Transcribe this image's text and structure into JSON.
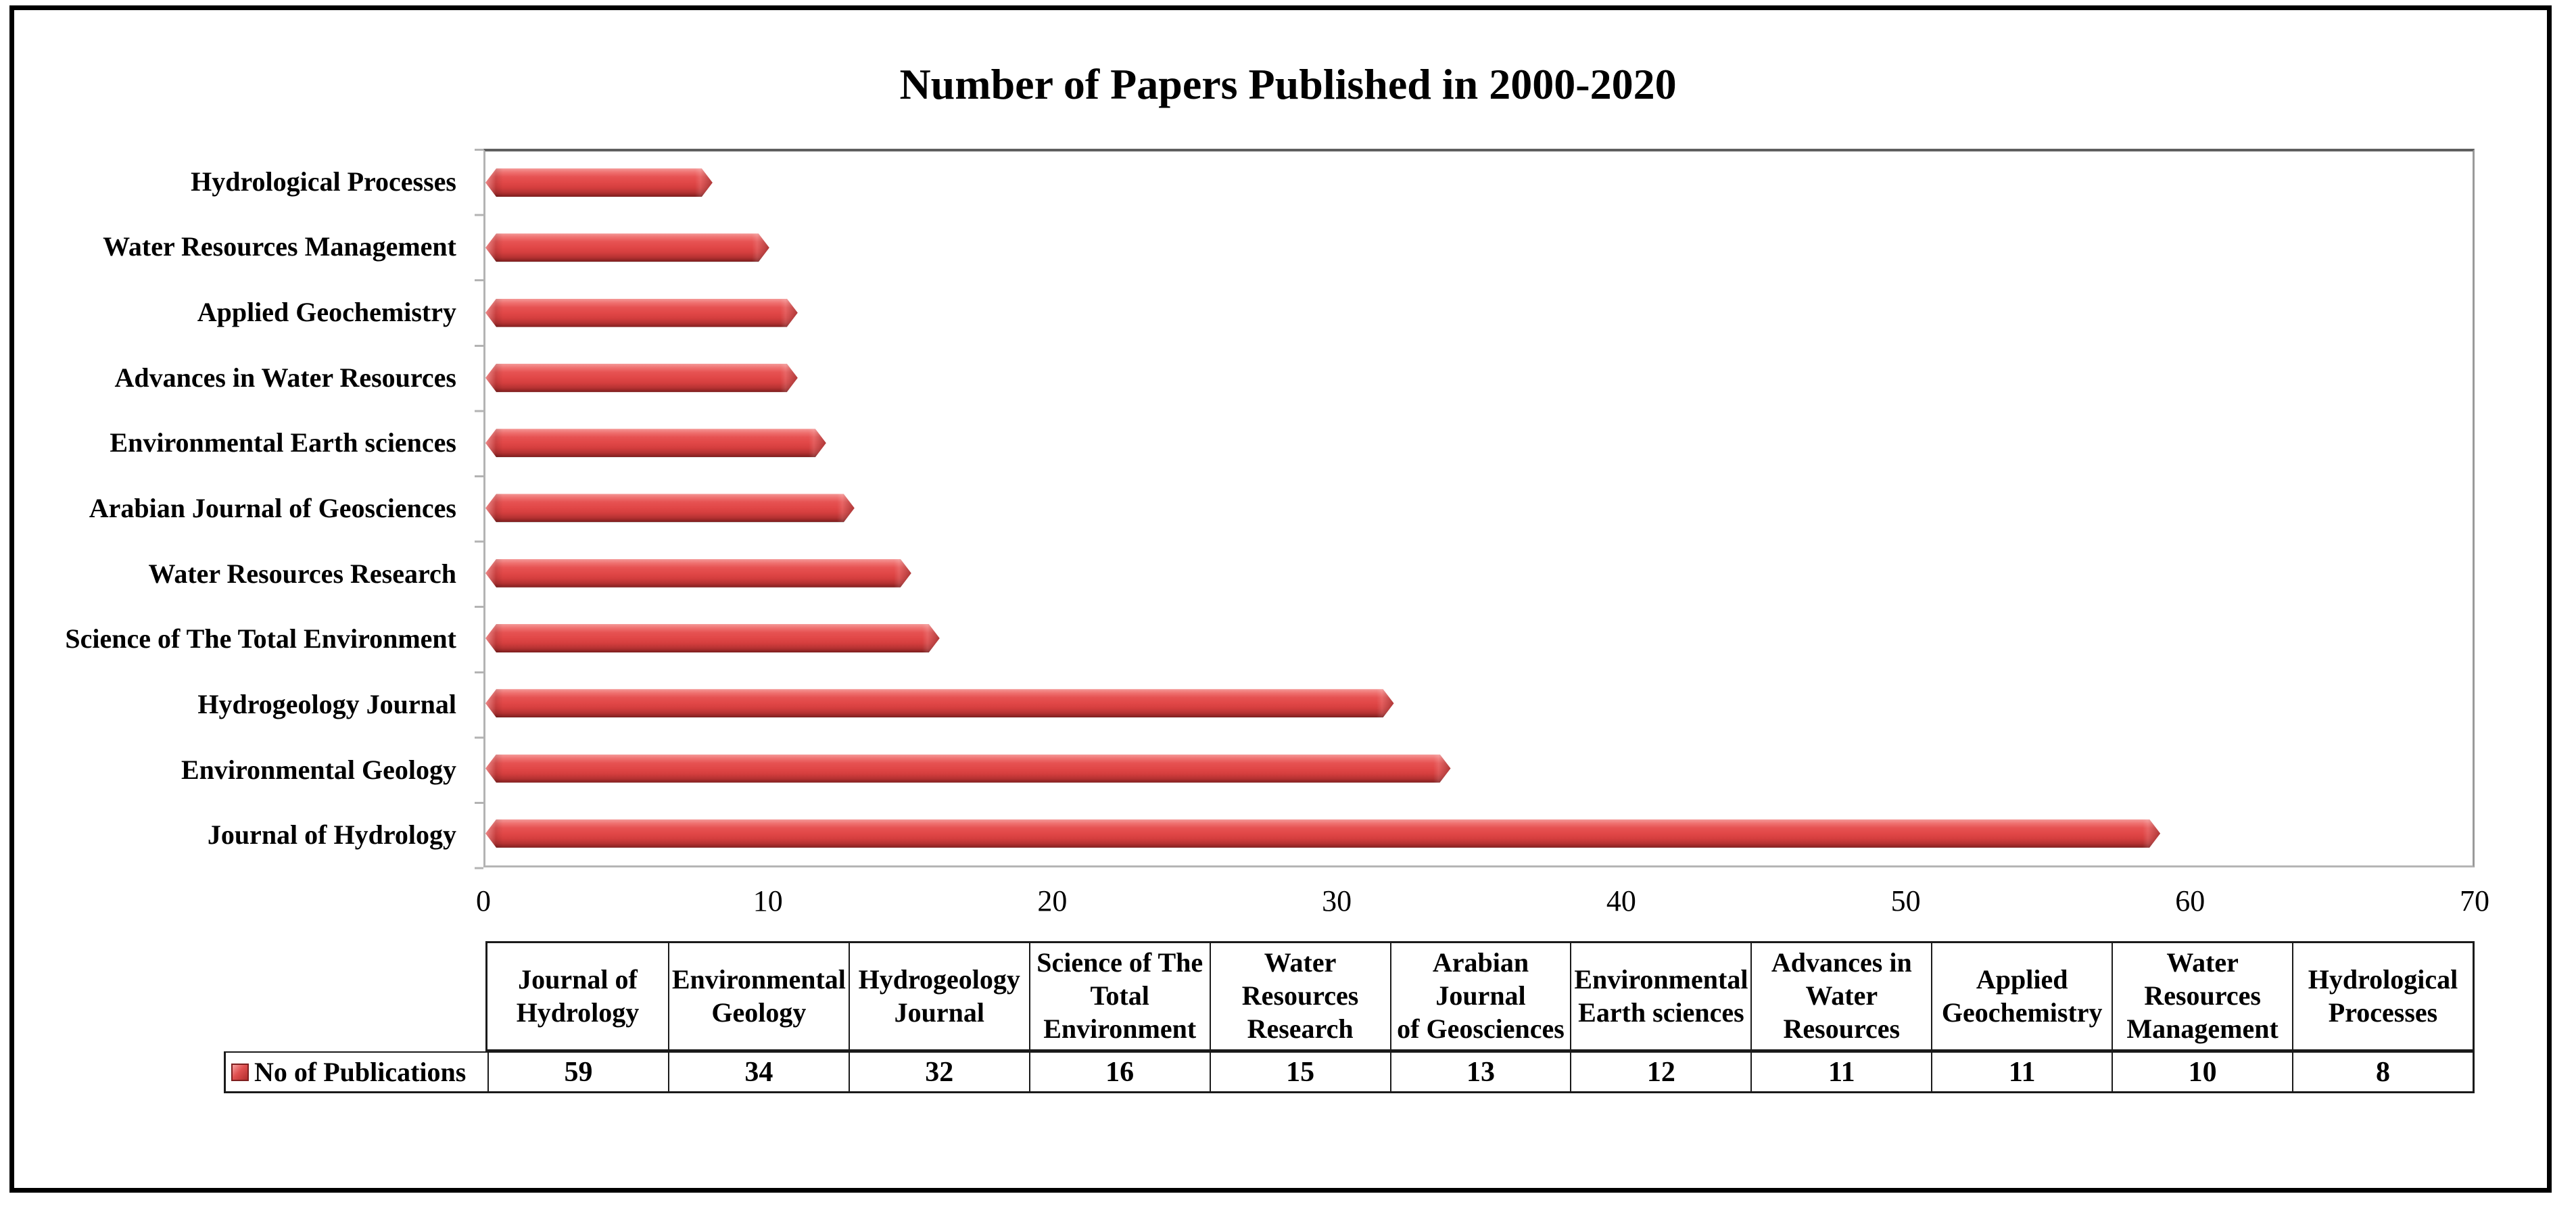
{
  "figure": {
    "title": "Number of Papers Published in 2000-2020"
  },
  "chart_data": {
    "type": "bar",
    "orientation": "horizontal",
    "title": "Number of Papers Published in 2000-2020",
    "categories": [
      "Journal of Hydrology",
      "Environmental Geology",
      "Hydrogeology Journal",
      "Science of The Total Environment",
      "Water Resources Research",
      "Arabian Journal of Geosciences",
      "Environmental Earth sciences",
      "Advances in Water Resources",
      "Applied Geochemistry",
      "Water Resources Management",
      "Hydrological Processes"
    ],
    "series": [
      {
        "name": "No of Publications",
        "values": [
          59,
          34,
          32,
          16,
          15,
          13,
          12,
          11,
          11,
          10,
          8
        ]
      }
    ],
    "xlabel": "",
    "ylabel": "",
    "xlim": [
      0,
      70
    ],
    "x_tick_step": 10,
    "grid": false,
    "bar_color": "#e14747",
    "bar_style": "3d-bevel",
    "legend_position": "table-row-left",
    "category_axis_order_top_to_bottom": [
      "Hydrological Processes",
      "Water Resources Management",
      "Applied Geochemistry",
      "Advances in Water Resources",
      "Environmental Earth sciences",
      "Arabian Journal of Geosciences",
      "Water Resources Research",
      "Science of The Total Environment",
      "Hydrogeology Journal",
      "Environmental Geology",
      "Journal of Hydrology"
    ]
  },
  "plot": {
    "x_max": 70,
    "x_ticks": [
      "0",
      "10",
      "20",
      "30",
      "40",
      "50",
      "60",
      "70"
    ],
    "rows": [
      {
        "label": "Hydrological Processes",
        "value": 8
      },
      {
        "label": "Water Resources Management",
        "value": 10
      },
      {
        "label": "Applied Geochemistry",
        "value": 11
      },
      {
        "label": "Advances in Water Resources",
        "value": 11
      },
      {
        "label": "Environmental Earth sciences",
        "value": 12
      },
      {
        "label": "Arabian Journal of Geosciences",
        "value": 13
      },
      {
        "label": "Water Resources Research",
        "value": 15
      },
      {
        "label": "Science of The Total Environment",
        "value": 16
      },
      {
        "label": "Hydrogeology Journal",
        "value": 32
      },
      {
        "label": "Environmental Geology",
        "value": 34
      },
      {
        "label": "Journal of Hydrology",
        "value": 59
      }
    ]
  },
  "table": {
    "legend_label": "No of Publications",
    "columns": [
      {
        "header": "Journal of\nHydrology",
        "value": "59"
      },
      {
        "header": "Environmental\nGeology",
        "value": "34"
      },
      {
        "header": "Hydrogeology\nJournal",
        "value": "32"
      },
      {
        "header": "Science of The\nTotal\nEnvironment",
        "value": "16"
      },
      {
        "header": "Water\nResources\nResearch",
        "value": "15"
      },
      {
        "header": "Arabian Journal\nof Geosciences",
        "value": "13"
      },
      {
        "header": "Environmental\nEarth sciences",
        "value": "12"
      },
      {
        "header": "Advances in\nWater\nResources",
        "value": "11"
      },
      {
        "header": "Applied\nGeochemistry",
        "value": "11"
      },
      {
        "header": "Water\nResources\nManagement",
        "value": "10"
      },
      {
        "header": "Hydrological\nProcesses",
        "value": "8"
      }
    ]
  },
  "colors": {
    "bar_main": "#e14747",
    "bar_highlight": "#f49a99",
    "bar_shadow_edge": "#7a1d1d",
    "plot_border": "#9a9a9a",
    "axis_line": "#b3b3b3",
    "table_border": "#1a1a1a",
    "frame_border": "#000000",
    "background": "#ffffff"
  }
}
